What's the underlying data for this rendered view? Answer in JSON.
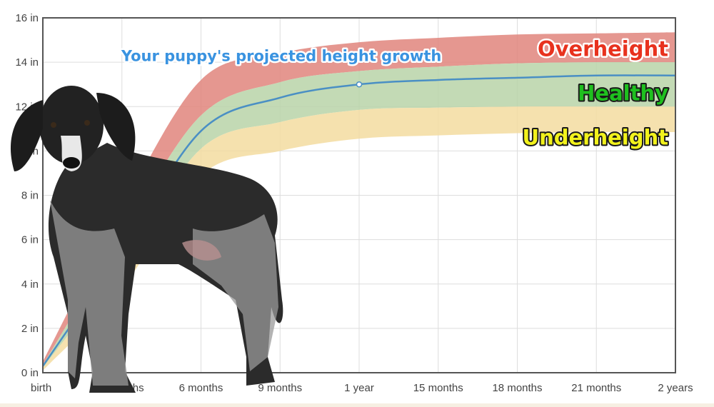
{
  "chart_data": {
    "type": "area",
    "title": "",
    "xlabel": "",
    "ylabel": "",
    "x_months": [
      0,
      3,
      6,
      9,
      12,
      15,
      18,
      21,
      24
    ],
    "x_tick_labels": [
      "birth",
      "3 months",
      "6 months",
      "9 months",
      "1 year",
      "15 months",
      "18 months",
      "21 months",
      "2 years"
    ],
    "y_ticks": [
      0,
      2,
      4,
      6,
      8,
      10,
      12,
      14,
      16
    ],
    "y_tick_labels": [
      "0 in",
      "2 in",
      "4 in",
      "6 in",
      "8 in",
      "10 in",
      "12 in",
      "14 in",
      "16 in"
    ],
    "ylim": [
      0,
      16
    ],
    "xlim": [
      0,
      24
    ],
    "grid": true,
    "bands": [
      {
        "name": "Overheight",
        "color": "#e0857c",
        "label_color": "#e8321e",
        "lower": [
          0.35,
          6.2,
          11.6,
          13.1,
          13.6,
          13.8,
          13.95,
          14.0,
          14.0
        ],
        "upper": [
          0.5,
          7.4,
          13.2,
          14.4,
          14.9,
          15.1,
          15.25,
          15.3,
          15.35
        ]
      },
      {
        "name": "Healthy",
        "color": "#b9d3a8",
        "label_color": "#1fc01f",
        "lower": [
          0.22,
          4.9,
          10.1,
          11.3,
          11.85,
          11.95,
          12.0,
          12.0,
          12.0
        ],
        "upper": [
          0.35,
          6.2,
          11.6,
          13.1,
          13.6,
          13.8,
          13.95,
          14.0,
          14.0
        ]
      },
      {
        "name": "Underheight",
        "color": "#f3dca0",
        "label_color": "#f2f21c",
        "lower": [
          0.1,
          3.8,
          8.9,
          10.0,
          10.55,
          10.7,
          10.8,
          10.85,
          10.85
        ],
        "upper": [
          0.22,
          4.9,
          10.1,
          11.3,
          11.85,
          11.95,
          12.0,
          12.0,
          12.0
        ]
      }
    ],
    "series": [
      {
        "name": "Your puppy's projected height growth",
        "color": "#4a8fc4",
        "values": [
          0.3,
          5.5,
          10.9,
          12.4,
          13.0,
          13.2,
          13.3,
          13.4,
          13.4
        ],
        "marker_at_month": 12
      }
    ]
  }
}
